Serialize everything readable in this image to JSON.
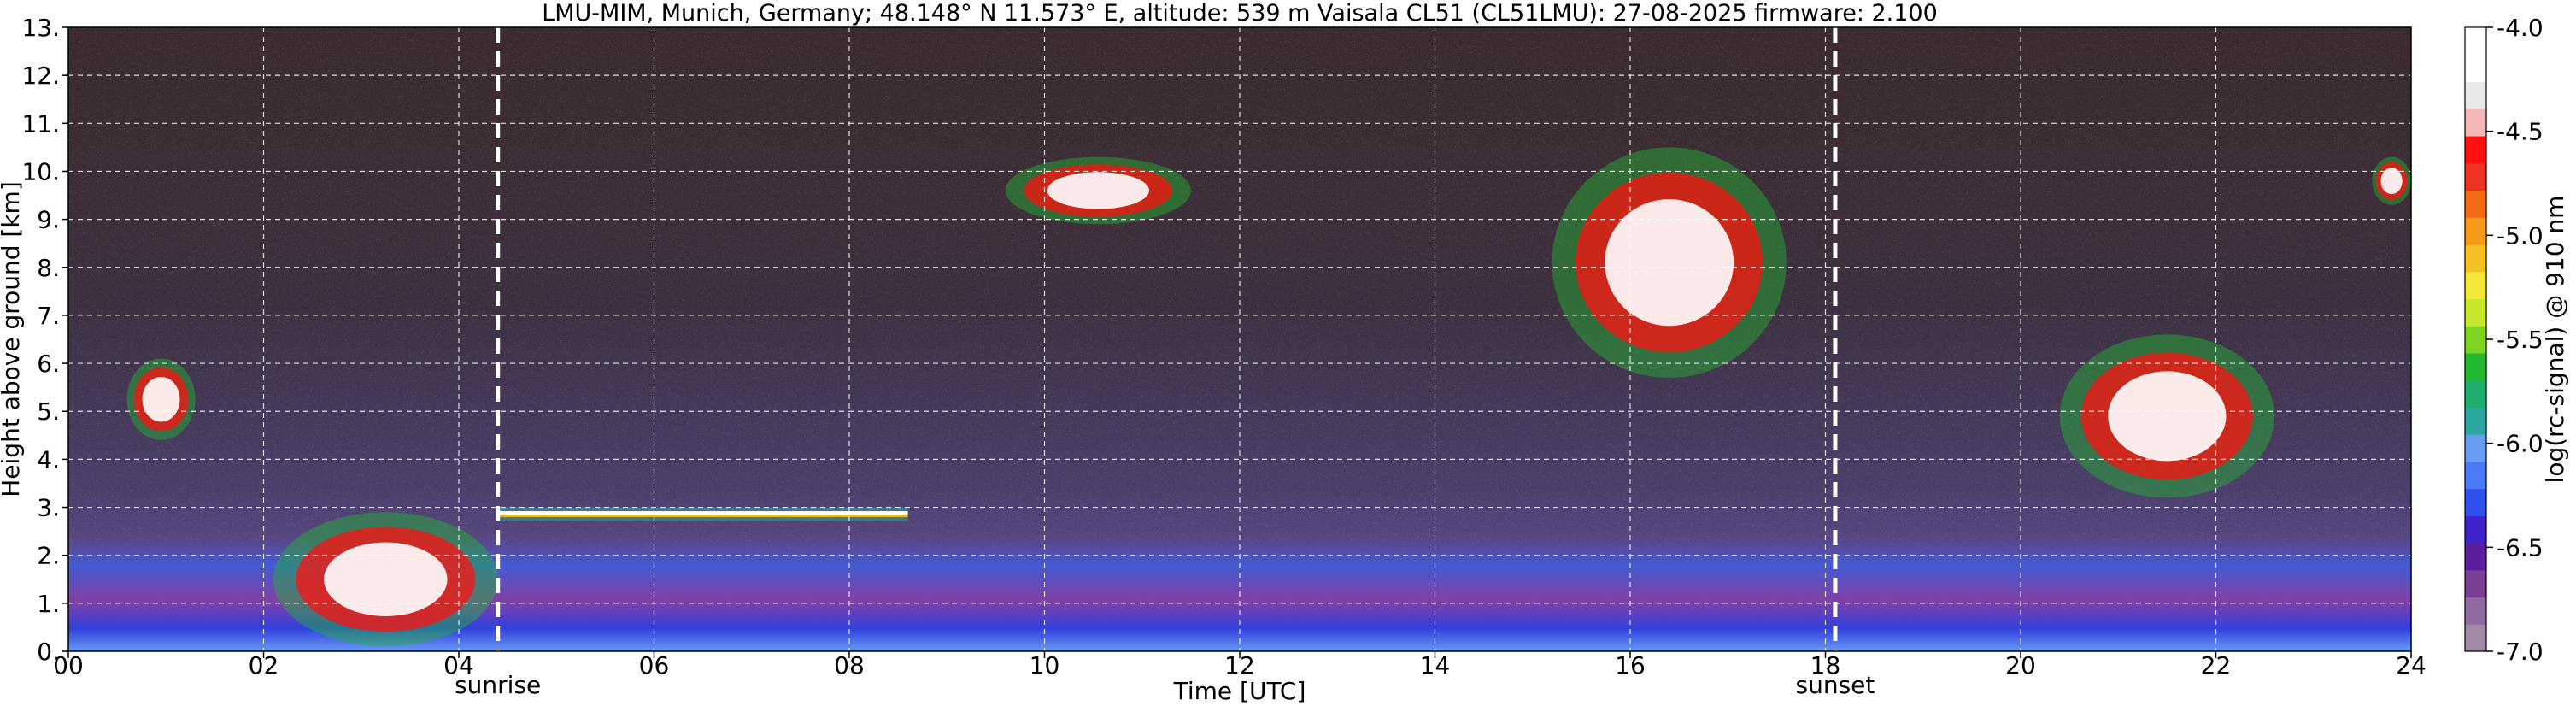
{
  "chart_data": {
    "type": "heatmap",
    "title": "LMU-MIM, Munich, Germany; 48.148° N 11.573° E, altitude: 539 m    Vaisala CL51 (CL51LMU): 27-08-2025    firmware: 2.100",
    "xlabel": "Time [UTC]",
    "ylabel": "Height above ground [km]",
    "colorbar_label": "log(rc-signal) @ 910 nm",
    "xlim": [
      0,
      24
    ],
    "ylim": [
      0,
      13
    ],
    "x_ticks": [
      {
        "value": 0,
        "label": "00"
      },
      {
        "value": 2,
        "label": "02"
      },
      {
        "value": 4,
        "label": "04"
      },
      {
        "value": 6,
        "label": "06"
      },
      {
        "value": 8,
        "label": "08"
      },
      {
        "value": 10,
        "label": "10"
      },
      {
        "value": 12,
        "label": "12"
      },
      {
        "value": 14,
        "label": "14"
      },
      {
        "value": 16,
        "label": "16"
      },
      {
        "value": 18,
        "label": "18"
      },
      {
        "value": 20,
        "label": "20"
      },
      {
        "value": 22,
        "label": "22"
      },
      {
        "value": 24,
        "label": "24"
      }
    ],
    "y_ticks": [
      {
        "value": 0,
        "label": "0."
      },
      {
        "value": 1,
        "label": "1."
      },
      {
        "value": 2,
        "label": "2."
      },
      {
        "value": 3,
        "label": "3."
      },
      {
        "value": 4,
        "label": "4."
      },
      {
        "value": 5,
        "label": "5."
      },
      {
        "value": 6,
        "label": "6."
      },
      {
        "value": 7,
        "label": "7."
      },
      {
        "value": 8,
        "label": "8."
      },
      {
        "value": 9,
        "label": "9."
      },
      {
        "value": 10,
        "label": "10."
      },
      {
        "value": 11,
        "label": "11."
      },
      {
        "value": 12,
        "label": "12."
      },
      {
        "value": 13,
        "label": "13."
      }
    ],
    "colorbar_range": [
      -7.0,
      -4.0
    ],
    "colorbar_ticks": [
      {
        "value": -4.0,
        "label": "-4.0"
      },
      {
        "value": -4.5,
        "label": "-4.5"
      },
      {
        "value": -5.0,
        "label": "-5.0"
      },
      {
        "value": -5.5,
        "label": "-5.5"
      },
      {
        "value": -6.0,
        "label": "-6.0"
      },
      {
        "value": -6.5,
        "label": "-6.5"
      },
      {
        "value": -7.0,
        "label": "-7.0"
      }
    ],
    "colormap": [
      "#a08aa6",
      "#8e6aa0",
      "#7a3f95",
      "#5b1f9e",
      "#3f22c9",
      "#3050f0",
      "#4a7af5",
      "#6a9cf3",
      "#2aa8a0",
      "#1eae6e",
      "#22b830",
      "#7ed321",
      "#c8e62a",
      "#f3e83a",
      "#f5c023",
      "#f59a1a",
      "#f36a16",
      "#ee3322",
      "#ff1010",
      "#f4b6b6",
      "#e8e8e8",
      "#ffffff",
      "#ffffff"
    ],
    "vertical_markers": [
      {
        "x": 4.4,
        "label": "sunrise"
      },
      {
        "x": 18.1,
        "label": "sunset"
      }
    ],
    "grid": true,
    "features": [
      {
        "kind": "cloud",
        "t0": 0.6,
        "t1": 1.3,
        "h0": 4.4,
        "h1": 6.1
      },
      {
        "kind": "cloud",
        "t0": 2.1,
        "t1": 4.4,
        "h0": 0.1,
        "h1": 2.9
      },
      {
        "kind": "layer",
        "t0": 4.4,
        "t1": 8.6,
        "h0": 2.2,
        "h1": 3.0
      },
      {
        "kind": "cloud",
        "t0": 9.6,
        "t1": 11.5,
        "h0": 8.9,
        "h1": 10.3
      },
      {
        "kind": "cloud",
        "t0": 15.2,
        "t1": 17.6,
        "h0": 5.7,
        "h1": 10.5
      },
      {
        "kind": "cloud",
        "t0": 20.4,
        "t1": 22.6,
        "h0": 3.2,
        "h1": 6.6
      },
      {
        "kind": "cloud",
        "t0": 23.6,
        "t1": 24.0,
        "h0": 9.3,
        "h1": 10.3
      }
    ]
  }
}
